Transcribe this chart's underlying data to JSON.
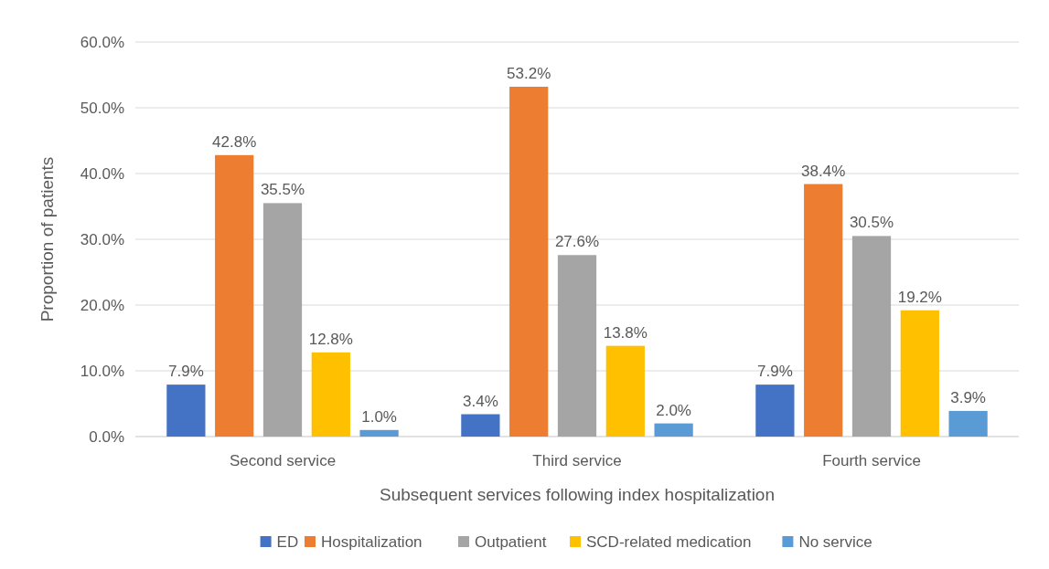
{
  "chart_data": {
    "type": "bar",
    "xlabel": "Subsequent services following index hospitalization",
    "ylabel": "Proportion of patients",
    "categories": [
      "Second service",
      "Third service",
      "Fourth service"
    ],
    "series": [
      {
        "name": "ED",
        "color": "#4472c4",
        "values": [
          7.9,
          3.4,
          7.9
        ],
        "value_labels": [
          "7.9%",
          "3.4%",
          "7.9%"
        ]
      },
      {
        "name": "Hospitalization",
        "color": "#ed7d31",
        "values": [
          42.8,
          53.2,
          38.4
        ],
        "value_labels": [
          "42.8%",
          "53.2%",
          "38.4%"
        ]
      },
      {
        "name": "Outpatient",
        "color": "#a5a5a5",
        "values": [
          35.5,
          27.6,
          30.5
        ],
        "value_labels": [
          "35.5%",
          "27.6%",
          "30.5%"
        ]
      },
      {
        "name": "SCD-related medication",
        "color": "#ffc000",
        "values": [
          12.8,
          13.8,
          19.2
        ],
        "value_labels": [
          "12.8%",
          "13.8%",
          "19.2%"
        ]
      },
      {
        "name": "No service",
        "color": "#5b9bd5",
        "values": [
          1.0,
          2.0,
          3.9
        ],
        "value_labels": [
          "1.0%",
          "2.0%",
          "3.9%"
        ]
      }
    ],
    "ylim": [
      0,
      60
    ],
    "yticks": [
      {
        "value": 0,
        "label": "0.0%"
      },
      {
        "value": 10,
        "label": "10.0%"
      },
      {
        "value": 20,
        "label": "20.0%"
      },
      {
        "value": 30,
        "label": "30.0%"
      },
      {
        "value": 40,
        "label": "40.0%"
      },
      {
        "value": 50,
        "label": "50.0%"
      },
      {
        "value": 60,
        "label": "60.0%"
      }
    ],
    "grid": "y",
    "legend": "bottom"
  }
}
